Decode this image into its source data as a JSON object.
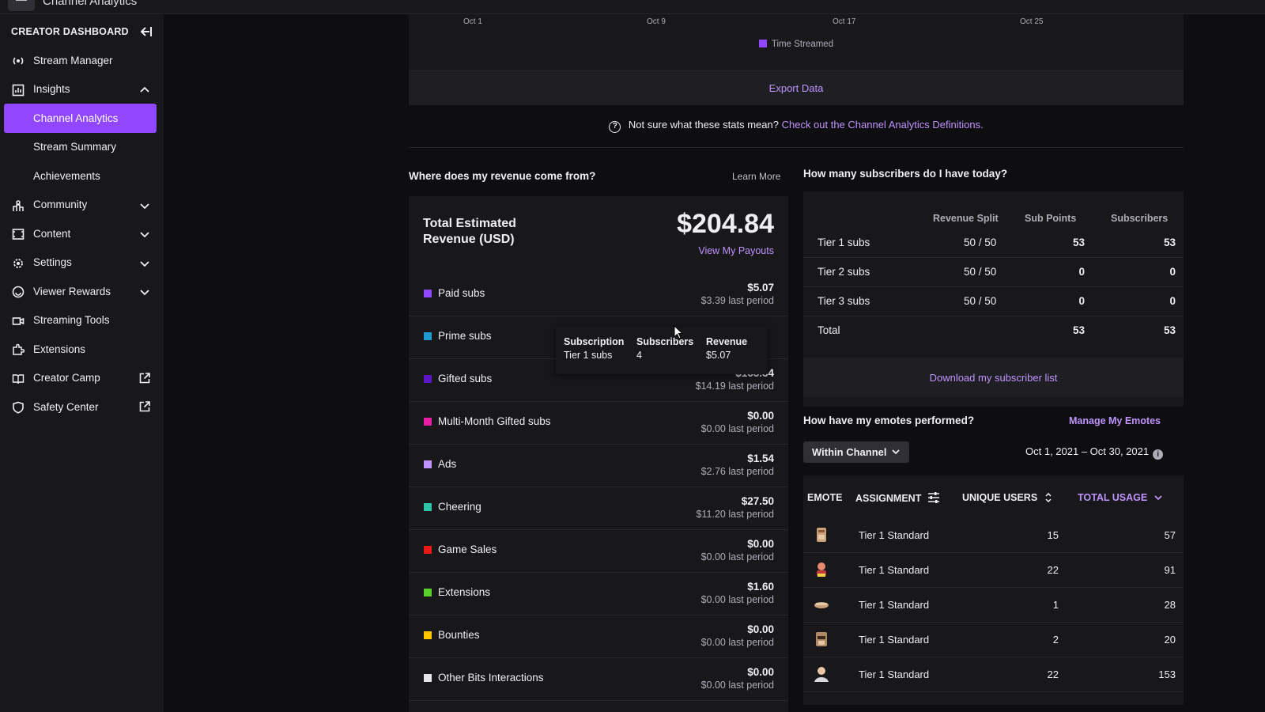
{
  "app": {
    "title": "Channel Analytics"
  },
  "sidebar": {
    "header": "CREATOR DASHBOARD",
    "items": [
      {
        "label": "Stream Manager"
      },
      {
        "label": "Insights"
      },
      {
        "label": "Channel Analytics"
      },
      {
        "label": "Stream Summary"
      },
      {
        "label": "Achievements"
      },
      {
        "label": "Community"
      },
      {
        "label": "Content"
      },
      {
        "label": "Settings"
      },
      {
        "label": "Viewer Rewards"
      },
      {
        "label": "Streaming Tools"
      },
      {
        "label": "Extensions"
      },
      {
        "label": "Creator Camp"
      },
      {
        "label": "Safety Center"
      }
    ]
  },
  "chart": {
    "x_ticks": [
      "Oct 1",
      "Oct 9",
      "Oct 17",
      "Oct 25"
    ],
    "legend": "Time Streamed",
    "legend_color": "#9147ff",
    "export_label": "Export Data"
  },
  "definitions": {
    "question": "Not sure what these stats mean?",
    "link": "Check out the Channel Analytics Definitions."
  },
  "revenue": {
    "title": "Where does my revenue come from?",
    "learn_more": "Learn More",
    "total_label": "Total Estimated Revenue (USD)",
    "total_value": "$204.84",
    "payouts_link": "View My Payouts",
    "rows": [
      {
        "name": "Paid subs",
        "amount": "$5.07",
        "prev": "$3.39 last period",
        "color": "#9147ff"
      },
      {
        "name": "Prime subs",
        "amount": "",
        "prev": "",
        "color": "#1f9bd1"
      },
      {
        "name": "Gifted subs",
        "amount": "$163.34",
        "prev": "$14.19 last period",
        "color": "#5c16c5"
      },
      {
        "name": "Multi-Month Gifted subs",
        "amount": "$0.00",
        "prev": "$0.00 last period",
        "color": "#e91ea5"
      },
      {
        "name": "Ads",
        "amount": "$1.54",
        "prev": "$2.76 last period",
        "color": "#bf94ff"
      },
      {
        "name": "Cheering",
        "amount": "$27.50",
        "prev": "$11.20 last period",
        "color": "#2ec4a8"
      },
      {
        "name": "Game Sales",
        "amount": "$0.00",
        "prev": "$0.00 last period",
        "color": "#e91916"
      },
      {
        "name": "Extensions",
        "amount": "$1.60",
        "prev": "$0.00 last period",
        "color": "#57d12a"
      },
      {
        "name": "Bounties",
        "amount": "$0.00",
        "prev": "$0.00 last period",
        "color": "#ffc600"
      },
      {
        "name": "Other Bits Interactions",
        "amount": "$0.00",
        "prev": "$0.00 last period",
        "color": "#e6e6ea"
      }
    ],
    "tooltip": {
      "headers": [
        "Subscription",
        "Subscribers",
        "Revenue"
      ],
      "values": [
        "Tier 1 subs",
        "4",
        "$5.07"
      ]
    }
  },
  "subscribers": {
    "title": "How many subscribers do I have today?",
    "headers": [
      "Revenue Split",
      "Sub Points",
      "Subscribers"
    ],
    "rows": [
      {
        "tier": "Tier 1 subs",
        "split": "50 / 50",
        "points": "53",
        "subs": "53"
      },
      {
        "tier": "Tier 2 subs",
        "split": "50 / 50",
        "points": "0",
        "subs": "0"
      },
      {
        "tier": "Tier 3 subs",
        "split": "50 / 50",
        "points": "0",
        "subs": "0"
      },
      {
        "tier": "Total",
        "split": "",
        "points": "53",
        "subs": "53"
      }
    ],
    "download_label": "Download my subscriber list"
  },
  "emotes": {
    "title": "How have my emotes performed?",
    "manage_link": "Manage My Emotes",
    "filter_value": "Within Channel",
    "date_range": "Oct 1, 2021 – Oct 30, 2021",
    "headers": [
      "EMOTE",
      "ASSIGNMENT",
      "UNIQUE USERS",
      "TOTAL USAGE"
    ],
    "rows": [
      {
        "assignment": "Tier 1 Standard",
        "unique": "15",
        "total": "57"
      },
      {
        "assignment": "Tier 1 Standard",
        "unique": "22",
        "total": "91"
      },
      {
        "assignment": "Tier 1 Standard",
        "unique": "1",
        "total": "28"
      },
      {
        "assignment": "Tier 1 Standard",
        "unique": "2",
        "total": "20"
      },
      {
        "assignment": "Tier 1 Standard",
        "unique": "22",
        "total": "153"
      }
    ]
  }
}
